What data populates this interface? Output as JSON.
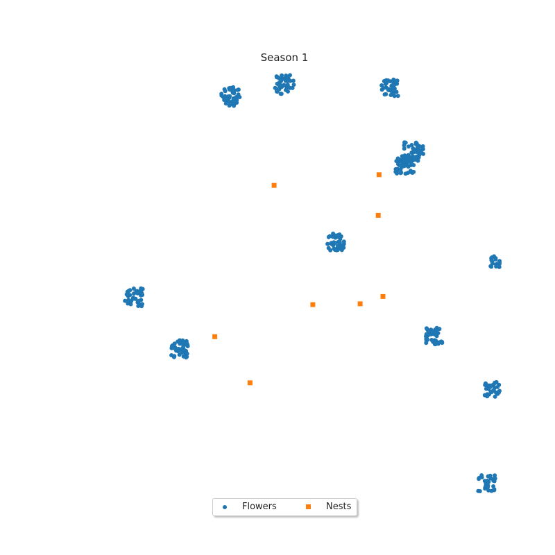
{
  "chart_data": {
    "type": "scatter",
    "title": "Season 1",
    "xlabel": "",
    "ylabel": "",
    "xlim": [
      0,
      100
    ],
    "ylim": [
      0,
      100
    ],
    "grid": false,
    "axes_visible": false,
    "legend": {
      "placement": "bottom-center",
      "columns": 2
    },
    "series": [
      {
        "name": "Flowers",
        "marker": "circle",
        "color": "#1f77b4",
        "clusters": [
          {
            "center": [
              37.5,
              93.0
            ],
            "spread": 2.2,
            "count": 45
          },
          {
            "center": [
              50.0,
              95.8
            ],
            "spread": 2.2,
            "count": 45
          },
          {
            "center": [
              74.5,
              95.0
            ],
            "spread": 2.0,
            "count": 40
          },
          {
            "center": [
              80.0,
              80.0
            ],
            "spread": 2.3,
            "count": 50
          },
          {
            "center": [
              78.0,
              77.0
            ],
            "spread": 2.2,
            "count": 45
          },
          {
            "center": [
              62.0,
              59.0
            ],
            "spread": 2.0,
            "count": 40
          },
          {
            "center": [
              15.0,
              46.0
            ],
            "spread": 2.1,
            "count": 40
          },
          {
            "center": [
              25.5,
              34.0
            ],
            "spread": 2.1,
            "count": 45
          },
          {
            "center": [
              85.0,
              37.0
            ],
            "spread": 2.1,
            "count": 40
          },
          {
            "center": [
              99.3,
              54.5
            ],
            "spread": 1.4,
            "count": 20
          },
          {
            "center": [
              98.3,
              24.5
            ],
            "spread": 1.8,
            "count": 35
          },
          {
            "center": [
              97.0,
              2.5
            ],
            "spread": 2.0,
            "count": 30
          }
        ]
      },
      {
        "name": "Nests",
        "marker": "square",
        "color": "#ff7f0e",
        "points": [
          [
            47.6,
            72.2
          ],
          [
            72.0,
            74.7
          ],
          [
            71.8,
            65.2
          ],
          [
            56.6,
            44.3
          ],
          [
            67.6,
            44.5
          ],
          [
            72.9,
            46.2
          ],
          [
            33.8,
            36.8
          ],
          [
            42.0,
            26.0
          ]
        ]
      }
    ]
  }
}
